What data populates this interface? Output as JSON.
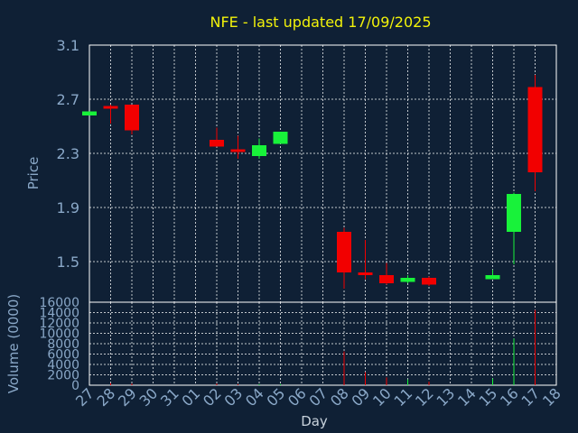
{
  "chart_data": {
    "type": "candlestick",
    "title": "NFE - last updated 17/09/2025",
    "xlabel": "Day",
    "ylabel": "Price",
    "volume_label": "Volume (0000)",
    "x_ticks": [
      "27",
      "28",
      "29",
      "30",
      "31",
      "01",
      "02",
      "03",
      "04",
      "05",
      "06",
      "07",
      "08",
      "09",
      "10",
      "11",
      "12",
      "13",
      "14",
      "15",
      "16",
      "17",
      "18"
    ],
    "price_axis": {
      "ylim": [
        1.2,
        3.1
      ],
      "ticks": [
        "3.1",
        "2.7",
        "2.3",
        "1.9",
        "1.5"
      ]
    },
    "volume_axis": {
      "ylim": [
        0,
        16000
      ],
      "ticks": [
        "16000",
        "14000",
        "12000",
        "10000",
        "8000",
        "6000",
        "4000",
        "2000",
        "0"
      ]
    },
    "grid": true,
    "colors": {
      "up": "#18f23a",
      "down": "#f20000",
      "background": "#0f2035",
      "grid": "#ffffff",
      "title": "#f2f20a",
      "axis_text": "#8aa8c8"
    },
    "candles": [
      {
        "day": "27",
        "open": 2.58,
        "high": 2.6,
        "low": 2.58,
        "close": 2.61,
        "volume": 0
      },
      {
        "day": "28",
        "open": 2.65,
        "high": 2.66,
        "low": 2.52,
        "close": 2.63,
        "volume": 400
      },
      {
        "day": "29",
        "open": 2.66,
        "high": 2.66,
        "low": 2.44,
        "close": 2.47,
        "volume": 300
      },
      {
        "day": "02",
        "open": 2.4,
        "high": 2.49,
        "low": 2.35,
        "close": 2.35,
        "volume": 300
      },
      {
        "day": "03",
        "open": 2.33,
        "high": 2.43,
        "low": 2.26,
        "close": 2.31,
        "volume": 200
      },
      {
        "day": "04",
        "open": 2.28,
        "high": 2.41,
        "low": 2.26,
        "close": 2.36,
        "volume": 200
      },
      {
        "day": "05",
        "open": 2.37,
        "high": 2.46,
        "low": 2.37,
        "close": 2.46,
        "volume": 200
      },
      {
        "day": "08",
        "open": 1.72,
        "high": 1.75,
        "low": 1.3,
        "close": 1.42,
        "volume": 6500
      },
      {
        "day": "09",
        "open": 1.42,
        "high": 1.66,
        "low": 1.37,
        "close": 1.41,
        "volume": 2500
      },
      {
        "day": "10",
        "open": 1.4,
        "high": 1.49,
        "low": 1.33,
        "close": 1.34,
        "volume": 1500
      },
      {
        "day": "11",
        "open": 1.35,
        "high": 1.4,
        "low": 1.34,
        "close": 1.38,
        "volume": 1100
      },
      {
        "day": "12",
        "open": 1.38,
        "high": 1.39,
        "low": 1.32,
        "close": 1.33,
        "volume": 700
      },
      {
        "day": "15",
        "open": 1.37,
        "high": 1.44,
        "low": 1.37,
        "close": 1.4,
        "volume": 1300
      },
      {
        "day": "16",
        "open": 1.72,
        "high": 2.01,
        "low": 1.48,
        "close": 2.0,
        "volume": 9000
      },
      {
        "day": "17",
        "open": 2.79,
        "high": 2.88,
        "low": 2.02,
        "close": 2.16,
        "volume": 14500
      }
    ]
  }
}
